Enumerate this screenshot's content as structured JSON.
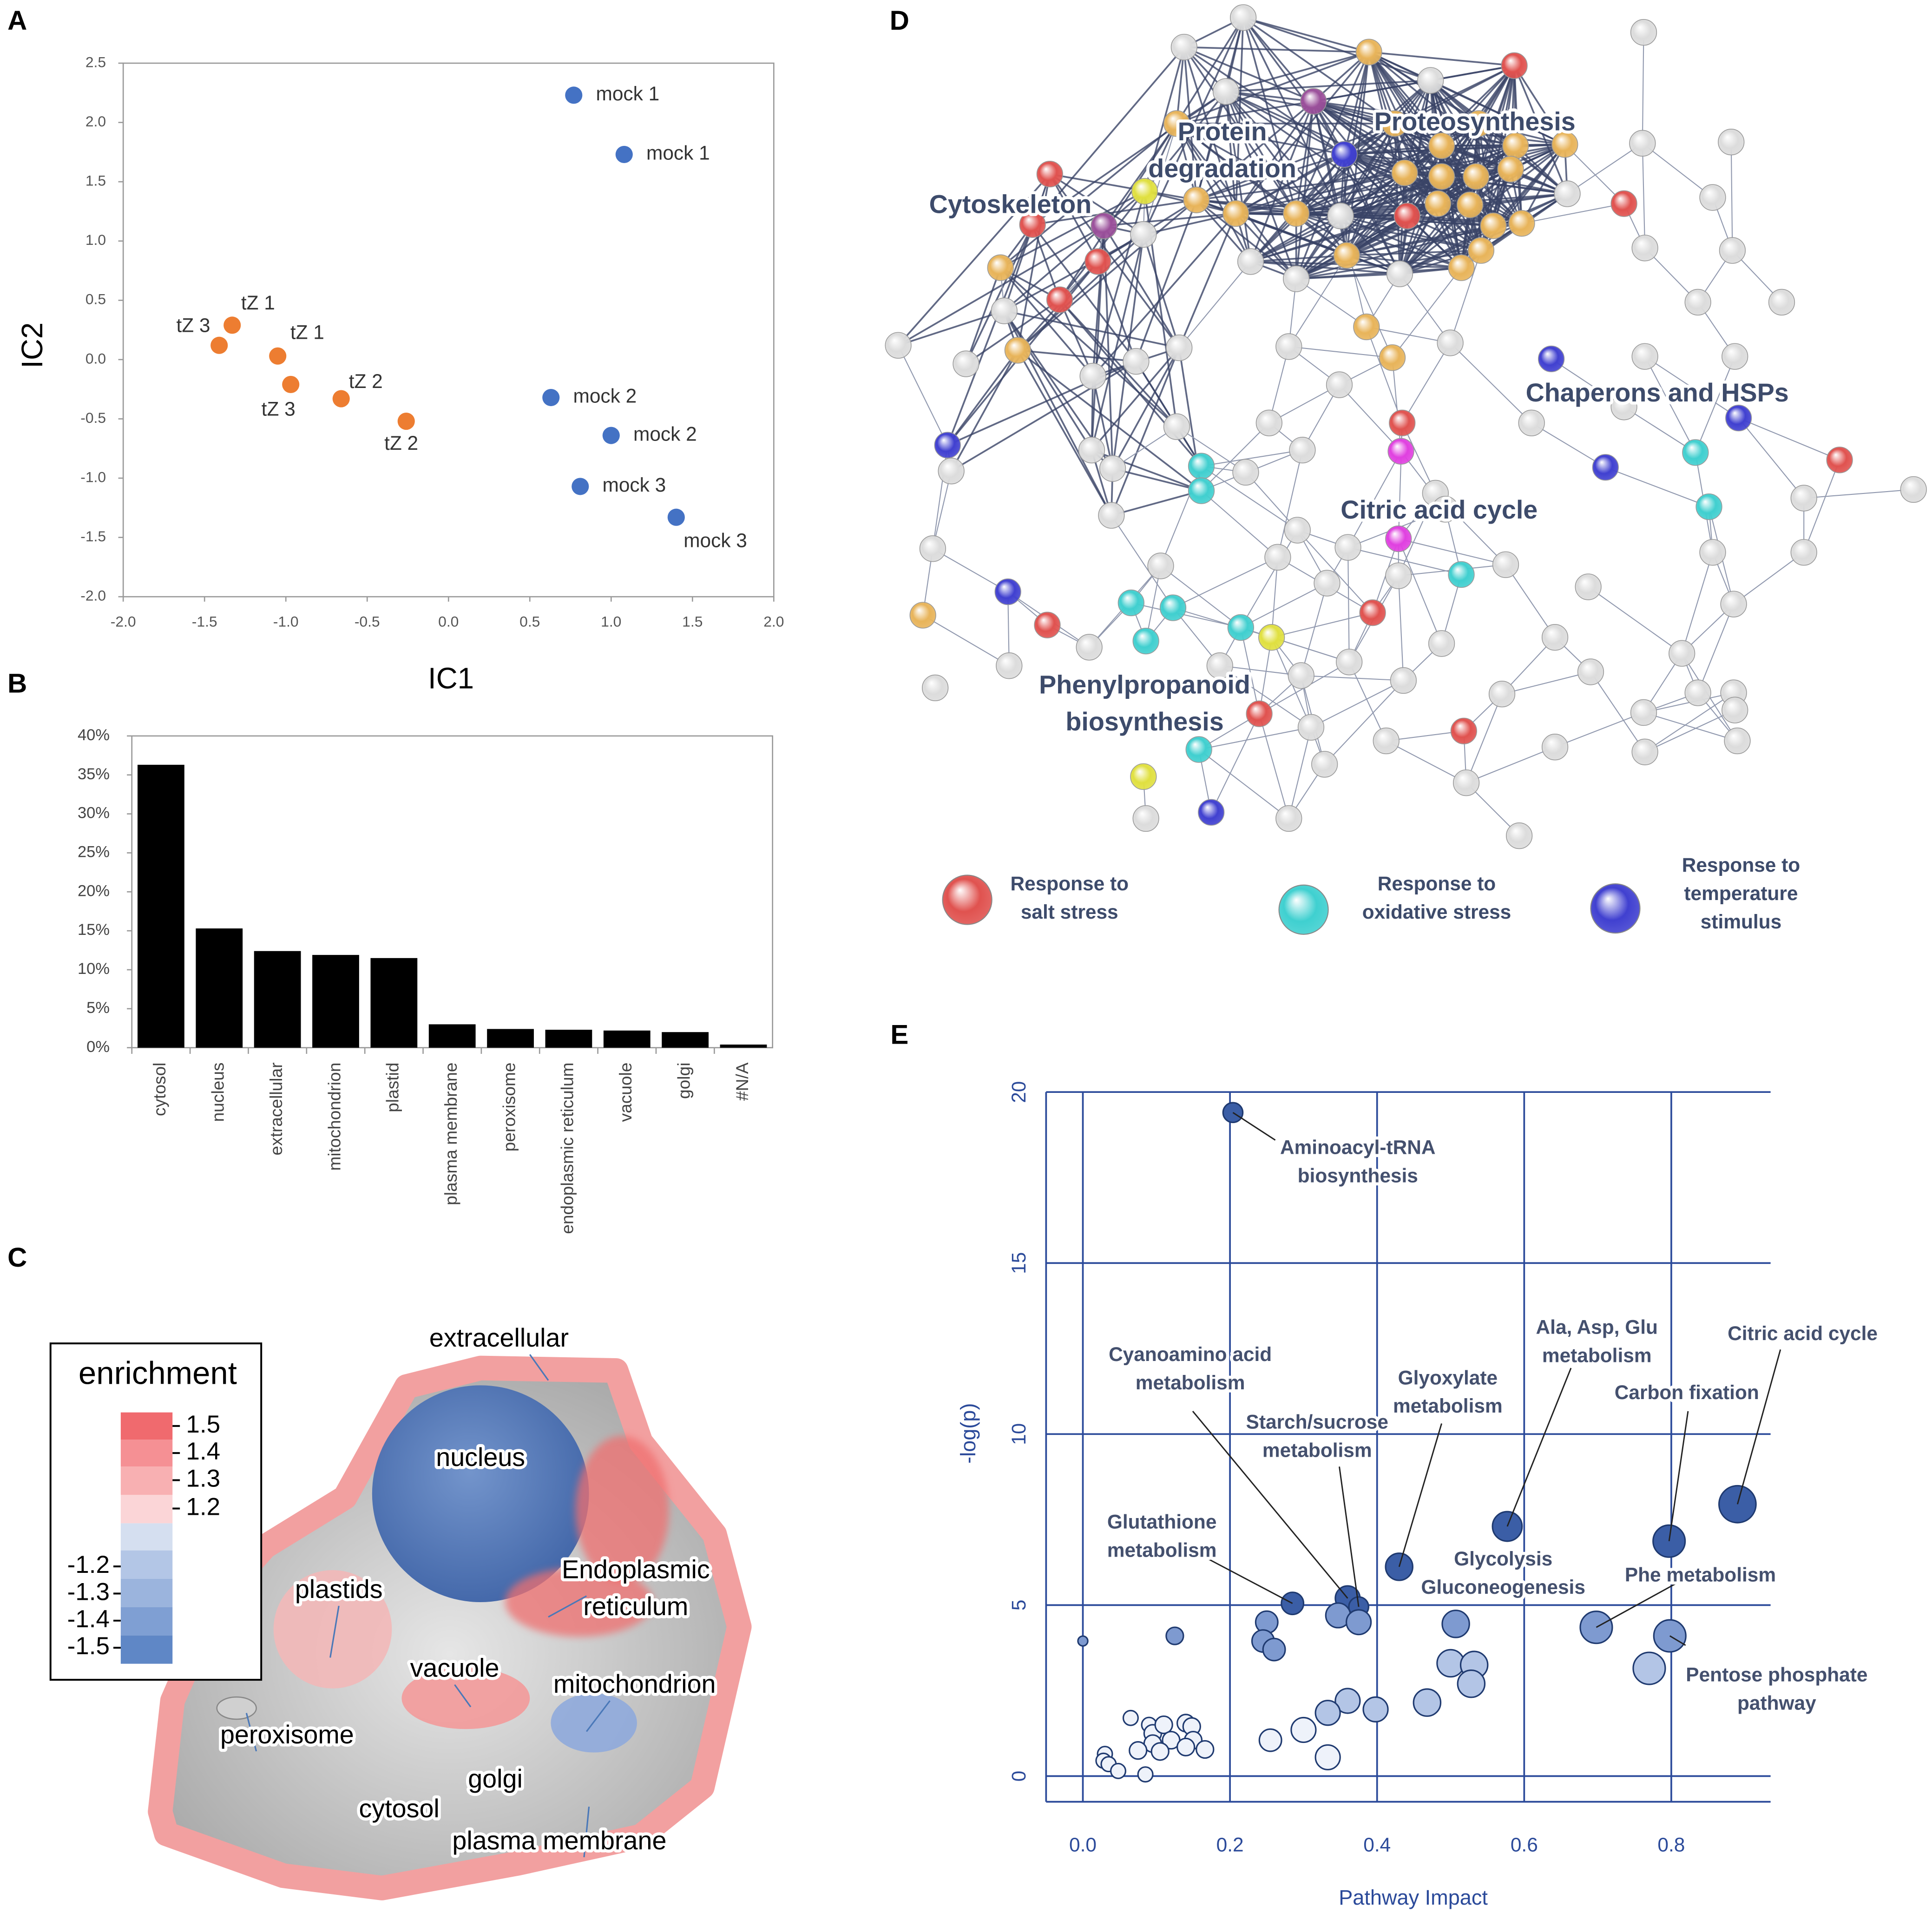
{
  "panel_labels": [
    "A",
    "B",
    "C",
    "D",
    "E"
  ],
  "chart_data": [
    {
      "type": "scatter",
      "xlabel": "IC1",
      "ylabel": "IC2",
      "xlim": [
        -2,
        2
      ],
      "ylim": [
        -2,
        2.5
      ],
      "xticks": [
        {
          "value": -2,
          "label": "-2.0"
        },
        -1.5,
        {
          "value": -1,
          "label": "-1.0"
        },
        -0.5,
        {
          "value": 0,
          "label": "0.0"
        },
        0.5,
        {
          "value": 1,
          "label": "1.0"
        },
        1.5,
        {
          "value": 2,
          "label": "2.0"
        }
      ],
      "yticks": [
        2.5,
        {
          "value": 2,
          "label": "2.0"
        },
        1.5,
        {
          "value": 1,
          "label": "1.0"
        },
        0.5,
        {
          "value": 0,
          "label": "0.0"
        },
        -0.5,
        {
          "value": -1,
          "label": "-1.0"
        },
        -1.5,
        {
          "value": -2,
          "label": "-2.0"
        }
      ],
      "series": [
        {
          "color": "#4472c4",
          "x": [
            0.77,
            1.08,
            0.63,
            1.0,
            0.81,
            1.4
          ],
          "y": [
            2.23,
            1.73,
            -0.32,
            -0.64,
            -1.07,
            -1.33
          ],
          "labels": [
            "mock 1",
            "mock 1",
            "mock 2",
            "mock 2",
            "mock 3",
            "mock 3"
          ]
        },
        {
          "color": "#ed7d31",
          "x": [
            -1.33,
            -1.05,
            -1.41,
            -0.97,
            -0.66,
            -0.26
          ],
          "y": [
            0.29,
            0.03,
            0.12,
            -0.21,
            -0.33,
            -0.52
          ],
          "labels": [
            "tZ 1",
            "tZ 1",
            "tZ 3",
            "tZ 3",
            "tZ 2",
            "tZ 2"
          ]
        }
      ]
    },
    {
      "type": "bar",
      "color": "#000000",
      "categories": [
        "cytosol",
        "nucleus",
        "extracellular",
        "mitochondrion",
        "plastid",
        "plasma membrane",
        "peroxisome",
        "endoplasmic reticulum",
        "vacuole",
        "golgi",
        "#N/A"
      ],
      "values": [
        36.3,
        15.3,
        12.4,
        11.9,
        11.5,
        3.0,
        2.4,
        2.3,
        2.2,
        2.0,
        0.4
      ],
      "ylim": [
        0,
        40
      ],
      "yticks": [
        {
          "value": 0,
          "label": "0%"
        },
        {
          "value": 5,
          "label": "5%"
        },
        {
          "value": 10,
          "label": "10%"
        },
        {
          "value": 15,
          "label": "15%"
        },
        {
          "value": 20,
          "label": "20%"
        },
        {
          "value": 25,
          "label": "25%"
        },
        {
          "value": 30,
          "label": "30%"
        },
        {
          "value": 35,
          "label": "35%"
        },
        {
          "value": 40,
          "label": "40%"
        }
      ]
    },
    {
      "type": "bubble",
      "xlabel": "Pathway Impact",
      "ylabel": "-log(p)",
      "xlim": [
        -0.05,
        0.935
      ],
      "ylim": [
        -0.75,
        20
      ],
      "grid": true,
      "xticks": [
        {
          "value": 0,
          "label": "0.0"
        },
        0.2,
        0.4,
        0.6,
        0.8
      ],
      "yticks": [
        0,
        5,
        10,
        15,
        20
      ],
      "x": [
        0.204,
        0.89,
        0.797,
        0.577,
        0.43,
        0.36,
        0.375,
        0.285,
        0.507,
        0.698,
        0.798,
        0.347,
        0.375,
        0.25,
        0.245,
        0.26,
        0.125,
        0.0,
        0.5,
        0.532,
        0.528,
        0.77,
        0.468,
        0.398,
        0.36,
        0.333,
        0.3,
        0.255,
        0.333,
        0.065,
        0.09,
        0.095,
        0.14,
        0.148,
        0.11,
        0.12,
        0.095,
        0.15,
        0.166,
        0.14,
        0.105,
        0.075,
        0.03,
        0.028,
        0.035,
        0.048,
        0.085
      ],
      "y": [
        19.4,
        7.95,
        6.87,
        7.3,
        6.12,
        5.2,
        4.95,
        5.05,
        4.45,
        4.35,
        4.1,
        4.7,
        4.5,
        4.5,
        3.95,
        3.7,
        4.1,
        3.95,
        3.3,
        3.25,
        2.7,
        3.15,
        2.15,
        1.95,
        2.2,
        1.85,
        1.35,
        1.05,
        0.55,
        1.7,
        1.5,
        1.25,
        1.55,
        1.45,
        1.5,
        1.05,
        0.95,
        1.05,
        0.78,
        0.85,
        0.72,
        0.75,
        0.65,
        0.45,
        0.35,
        0.15,
        0.05
      ],
      "sizes": [
        8,
        15,
        13,
        12,
        11,
        10,
        8,
        9,
        11,
        13,
        13,
        10,
        10,
        9,
        9,
        9,
        7,
        4,
        11,
        11,
        11,
        13,
        11,
        10,
        10,
        10,
        10,
        9,
        10,
        6,
        6,
        7,
        7,
        7,
        7,
        7,
        7,
        7,
        7,
        7,
        7,
        7,
        6,
        6,
        6,
        6,
        6
      ],
      "colors": [
        "#3b5ea6",
        "#3b5ea6",
        "#3b5ea6",
        "#3b5ea6",
        "#3b5ea6",
        "#3b5ea6",
        "#3b5ea6",
        "#3b5ea6",
        "#7e9ad0",
        "#7e9ad0",
        "#7e9ad0",
        "#7e9ad0",
        "#7e9ad0",
        "#7e9ad0",
        "#7e9ad0",
        "#7e9ad0",
        "#7e9ad0",
        "#7e9ad0",
        "#b3c5e6",
        "#b3c5e6",
        "#b3c5e6",
        "#b3c5e6",
        "#b3c5e6",
        "#b3c5e6",
        "#b3c5e6",
        "#b3c5e6",
        "#eef2fa",
        "#eef2fa",
        "#eef2fa",
        "#eef2fa",
        "#eef2fa",
        "#eef2fa",
        "#eef2fa",
        "#eef2fa",
        "#eef2fa",
        "#eef2fa",
        "#eef2fa",
        "#eef2fa",
        "#eef2fa",
        "#eef2fa",
        "#eef2fa",
        "#eef2fa",
        "#eef2fa",
        "#eef2fa",
        "#eef2fa",
        "#eef2fa",
        "#eef2fa"
      ],
      "annotations": [
        {
          "lines": [
            "Aminoacyl-tRNA",
            "biosynthesis"
          ],
          "point": 0
        },
        {
          "lines": [
            "Citric acid cycle"
          ],
          "point": 1
        },
        {
          "lines": [
            "Carbon fixation"
          ],
          "point": 2
        },
        {
          "lines": [
            "Ala, Asp, Glu",
            "metabolism"
          ],
          "point": 3
        },
        {
          "lines": [
            "Glyoxylate",
            "metabolism"
          ],
          "point": 4
        },
        {
          "lines": [
            "Cyanoamino acid",
            "metabolism"
          ],
          "point": 5
        },
        {
          "lines": [
            "Starch/sucrose",
            "metabolism"
          ],
          "point": 6
        },
        {
          "lines": [
            "Glutathione",
            "metabolism"
          ],
          "point": 7
        },
        {
          "lines": [
            "Glycolysis",
            "Gluconeogenesis"
          ],
          "point": 8
        },
        {
          "lines": [
            "Phe metabolism"
          ],
          "point": 9
        },
        {
          "lines": [
            "Pentose phosphate",
            "pathway"
          ],
          "point": 10
        }
      ]
    }
  ],
  "cell_diagram": {
    "legend_title": "enrichment",
    "legend_ticks": [
      1.5,
      1.4,
      1.3,
      1.2,
      -1.2,
      -1.3,
      -1.4,
      -1.5
    ],
    "labels": [
      [
        "extracellular"
      ],
      [
        "nucleus"
      ],
      [
        "Endoplasmic",
        "reticulum"
      ],
      [
        "plastids"
      ],
      [
        "vacuole"
      ],
      [
        "mitochondrion"
      ],
      [
        "peroxisome"
      ],
      [
        "golgi"
      ],
      [
        "cytosol"
      ],
      [
        "plasma membrane"
      ]
    ]
  },
  "network": {
    "clusters": [
      [
        "Protein",
        "degradation"
      ],
      [
        "Proteosynthesis"
      ],
      [
        "Cytoskeleton"
      ],
      [
        "Chaperons and HSPs"
      ],
      [
        "Citric acid cycle"
      ],
      [
        "Phenylpropanoid",
        "biosynthesis"
      ]
    ],
    "legend": [
      {
        "lines": [
          "Response to",
          "salt stress"
        ],
        "color": "#e0524f"
      },
      {
        "lines": [
          "Response to",
          "oxidative stress"
        ],
        "color": "#3fd0d0"
      },
      {
        "lines": [
          "Response to",
          "temperature",
          "stimulus"
        ],
        "color": "#4040d0"
      }
    ]
  }
}
